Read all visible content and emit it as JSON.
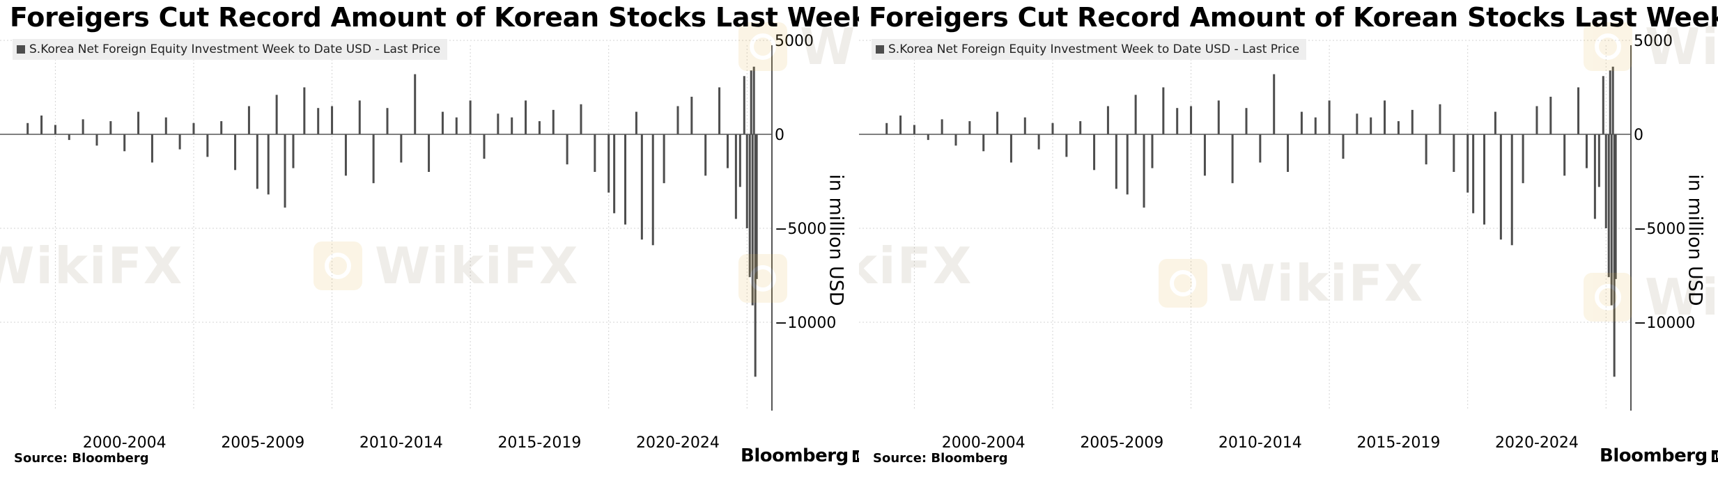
{
  "panels": [
    {
      "title": "Foreigers Cut Record Amount of Korean Stocks Last Week",
      "legend": "S.Korea Net Foreign Equity Investment Week to Date USD - Last Price",
      "ylabel": "in million USD",
      "source": "Source: Bloomberg",
      "brand": "Bloomberg"
    },
    {
      "title": "Foreigers Cut Record Amount of Korean Stocks Last Week",
      "legend": "S.Korea Net Foreign Equity Investment Week to Date USD - Last Price",
      "ylabel": "in million USD",
      "source": "Source: Bloomberg",
      "brand": "Bloomberg"
    }
  ],
  "watermark_text": "WikiFX",
  "colors": {
    "bars": "#4d4d4d",
    "grid": "#d3d3d3",
    "background": "#ffffff"
  },
  "chart_data": [
    {
      "type": "bar",
      "title": "Foreigers Cut Record Amount of Korean Stocks Last Week",
      "legend": [
        "S.Korea Net Foreign Equity Investment Week to Date USD - Last Price"
      ],
      "ylabel": "in million USD",
      "xlabel": "",
      "x_tick_labels": [
        "2000-2004",
        "2005-2009",
        "2010-2014",
        "2015-2019",
        "2020-2024"
      ],
      "y_ticks": [
        5000,
        0,
        -5000,
        -10000
      ],
      "ylim": [
        -14500,
        5000
      ],
      "xlim": [
        1998.0,
        2025.9
      ],
      "grid": true,
      "y_axis_side": "right",
      "series": [
        {
          "name": "S.Korea Net Foreign Equity Investment Week to Date USD - Last Price",
          "color": "#4d4d4d",
          "x": [
            1999.0,
            1999.5,
            2000.0,
            2000.5,
            2001.0,
            2001.5,
            2002.0,
            2002.5,
            2003.0,
            2003.5,
            2004.0,
            2004.5,
            2005.0,
            2005.5,
            2006.0,
            2006.5,
            2007.0,
            2007.3,
            2007.7,
            2008.0,
            2008.3,
            2008.6,
            2009.0,
            2009.5,
            2010.0,
            2010.5,
            2011.0,
            2011.5,
            2012.0,
            2012.5,
            2013.0,
            2013.5,
            2014.0,
            2014.5,
            2015.0,
            2015.5,
            2016.0,
            2016.5,
            2017.0,
            2017.5,
            2018.0,
            2018.5,
            2019.0,
            2019.5,
            2020.0,
            2020.2,
            2020.6,
            2021.0,
            2021.2,
            2021.6,
            2022.0,
            2022.5,
            2023.0,
            2023.5,
            2024.0,
            2024.3,
            2024.6,
            2024.75,
            2024.9,
            2025.0,
            2025.1,
            2025.15,
            2025.2,
            2025.25,
            2025.3,
            2025.35
          ],
          "values": [
            600,
            1000,
            500,
            -300,
            800,
            -600,
            700,
            -900,
            1200,
            -1500,
            900,
            -800,
            600,
            -1200,
            700,
            -1900,
            1500,
            -2900,
            -3200,
            2100,
            -3900,
            -1800,
            2500,
            1400,
            1500,
            -2200,
            1800,
            -2600,
            1400,
            -1500,
            3200,
            -2000,
            1200,
            900,
            1800,
            -1300,
            1100,
            900,
            1800,
            700,
            1300,
            -1600,
            1600,
            -2000,
            -3100,
            -4200,
            -4800,
            1200,
            -5600,
            -5900,
            -2600,
            1500,
            2000,
            -2200,
            2500,
            -1800,
            -4500,
            -2800,
            3100,
            -5000,
            -7600,
            3400,
            -9100,
            3600,
            -12900,
            -7700
          ]
        }
      ]
    },
    {
      "type": "bar",
      "title": "Foreigers Cut Record Amount of Korean Stocks Last Week",
      "legend": [
        "S.Korea Net Foreign Equity Investment Week to Date USD - Last Price"
      ],
      "ylabel": "in million USD",
      "xlabel": "",
      "x_tick_labels": [
        "2000-2004",
        "2005-2009",
        "2010-2014",
        "2015-2019",
        "2020-2024"
      ],
      "y_ticks": [
        5000,
        0,
        -5000,
        -10000
      ],
      "ylim": [
        -14500,
        5000
      ],
      "xlim": [
        1998.0,
        2025.9
      ],
      "grid": true,
      "y_axis_side": "right",
      "series": [
        {
          "name": "S.Korea Net Foreign Equity Investment Week to Date USD - Last Price",
          "color": "#4d4d4d",
          "x": [
            1999.0,
            1999.5,
            2000.0,
            2000.5,
            2001.0,
            2001.5,
            2002.0,
            2002.5,
            2003.0,
            2003.5,
            2004.0,
            2004.5,
            2005.0,
            2005.5,
            2006.0,
            2006.5,
            2007.0,
            2007.3,
            2007.7,
            2008.0,
            2008.3,
            2008.6,
            2009.0,
            2009.5,
            2010.0,
            2010.5,
            2011.0,
            2011.5,
            2012.0,
            2012.5,
            2013.0,
            2013.5,
            2014.0,
            2014.5,
            2015.0,
            2015.5,
            2016.0,
            2016.5,
            2017.0,
            2017.5,
            2018.0,
            2018.5,
            2019.0,
            2019.5,
            2020.0,
            2020.2,
            2020.6,
            2021.0,
            2021.2,
            2021.6,
            2022.0,
            2022.5,
            2023.0,
            2023.5,
            2024.0,
            2024.3,
            2024.6,
            2024.75,
            2024.9,
            2025.0,
            2025.1,
            2025.15,
            2025.2,
            2025.25,
            2025.3,
            2025.35
          ],
          "values": [
            600,
            1000,
            500,
            -300,
            800,
            -600,
            700,
            -900,
            1200,
            -1500,
            900,
            -800,
            600,
            -1200,
            700,
            -1900,
            1500,
            -2900,
            -3200,
            2100,
            -3900,
            -1800,
            2500,
            1400,
            1500,
            -2200,
            1800,
            -2600,
            1400,
            -1500,
            3200,
            -2000,
            1200,
            900,
            1800,
            -1300,
            1100,
            900,
            1800,
            700,
            1300,
            -1600,
            1600,
            -2000,
            -3100,
            -4200,
            -4800,
            1200,
            -5600,
            -5900,
            -2600,
            1500,
            2000,
            -2200,
            2500,
            -1800,
            -4500,
            -2800,
            3100,
            -5000,
            -7600,
            3400,
            -9100,
            3600,
            -12900,
            -7700
          ]
        }
      ]
    }
  ]
}
